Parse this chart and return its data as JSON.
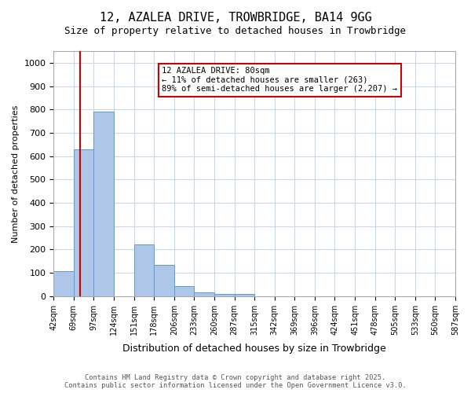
{
  "title_line1": "12, AZALEA DRIVE, TROWBRIDGE, BA14 9GG",
  "title_line2": "Size of property relative to detached houses in Trowbridge",
  "xlabel": "Distribution of detached houses by size in Trowbridge",
  "ylabel": "Number of detached properties",
  "bin_labels": [
    "42sqm",
    "69sqm",
    "97sqm",
    "124sqm",
    "151sqm",
    "178sqm",
    "206sqm",
    "233sqm",
    "260sqm",
    "287sqm",
    "315sqm",
    "342sqm",
    "369sqm",
    "396sqm",
    "424sqm",
    "451sqm",
    "478sqm",
    "505sqm",
    "533sqm",
    "560sqm",
    "587sqm"
  ],
  "bar_heights": [
    107,
    630,
    790,
    0,
    220,
    135,
    42,
    15,
    8,
    10,
    0,
    0,
    0,
    0,
    0,
    0,
    0,
    0,
    0,
    0
  ],
  "bar_color": "#aec6e8",
  "bar_edge_color": "#5b9bd5",
  "vline_x_offset": 0.3,
  "vline_bin_index": 1,
  "property_line_label": "12 AZALEA DRIVE: 80sqm",
  "annotation_line2": "← 11% of detached houses are smaller (263)",
  "annotation_line3": "89% of semi-detached houses are larger (2,207) →",
  "annotation_box_color": "#ffffff",
  "annotation_box_edge": "#cc0000",
  "vline_color": "#cc0000",
  "ylim": [
    0,
    1050
  ],
  "yticks": [
    0,
    100,
    200,
    300,
    400,
    500,
    600,
    700,
    800,
    900,
    1000
  ],
  "footer_line1": "Contains HM Land Registry data © Crown copyright and database right 2025.",
  "footer_line2": "Contains public sector information licensed under the Open Government Licence v3.0.",
  "background_color": "#ffffff",
  "grid_color": "#c8d8e8"
}
